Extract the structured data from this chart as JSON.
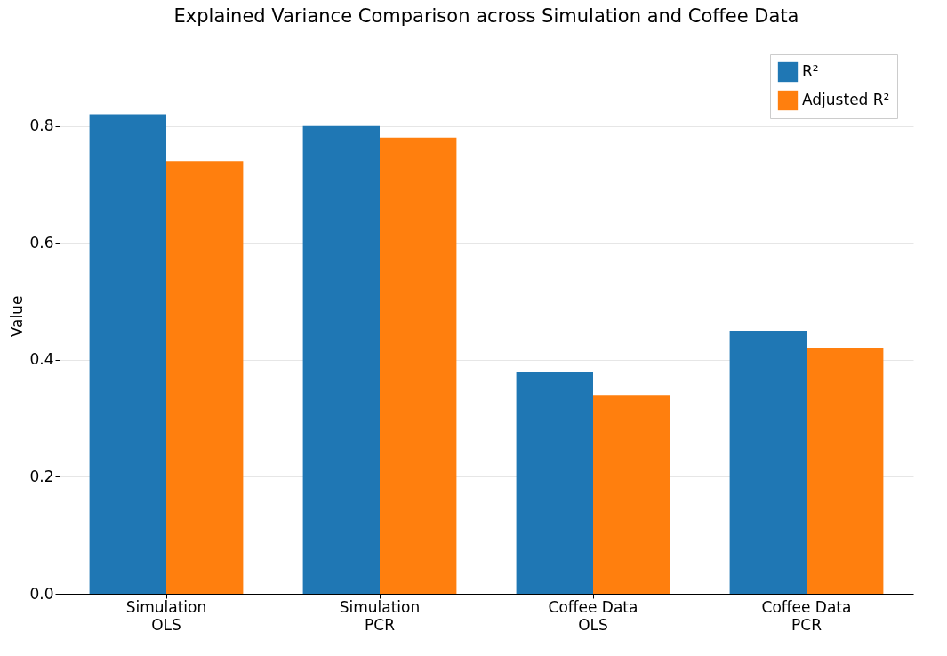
{
  "chart_data": {
    "type": "bar",
    "title": "Explained Variance Comparison across Simulation and Coffee Data",
    "ylabel": "Value",
    "categories": [
      "Simulation\nOLS",
      "Simulation\nPCR",
      "Coffee Data\nOLS",
      "Coffee Data\nPCR"
    ],
    "series": [
      {
        "name": "R²",
        "color": "#1f77b4",
        "values": [
          0.82,
          0.8,
          0.38,
          0.45
        ]
      },
      {
        "name": "Adjusted R²",
        "color": "#ff7f0e",
        "values": [
          0.74,
          0.78,
          0.34,
          0.42
        ]
      }
    ],
    "ylim": [
      0,
      0.95
    ],
    "yticks": [
      {
        "value": 0,
        "label": "0.0"
      },
      0.2,
      0.4,
      0.6,
      0.8
    ],
    "grid": "y",
    "legend": "top right"
  }
}
